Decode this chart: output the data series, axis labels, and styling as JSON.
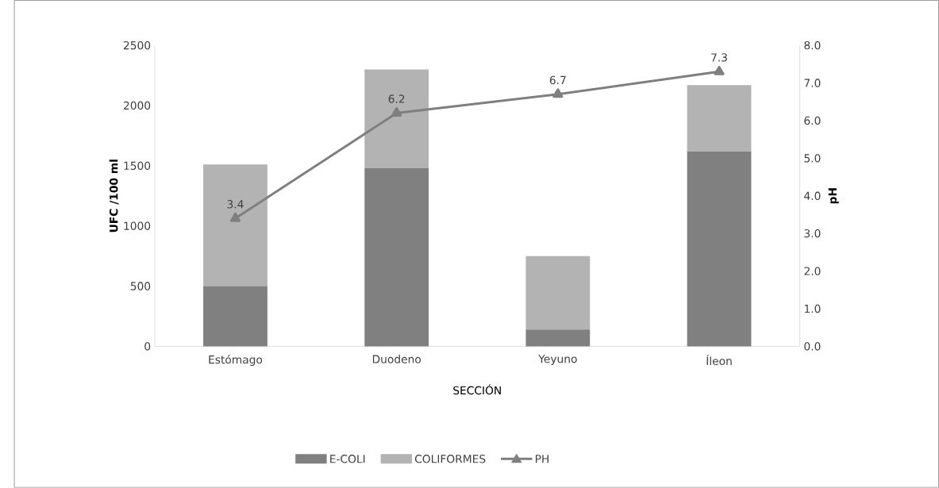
{
  "chart_data": {
    "type": "bar",
    "stacked": true,
    "xlabel": "SECCIÓN",
    "ylabel": "UFC /100 ml",
    "y2label": "pH",
    "categories": [
      "Estómago",
      "Duodeno",
      "Yeyuno",
      "Íleon"
    ],
    "ylim": [
      0,
      2500
    ],
    "yticks": [
      0,
      500,
      1000,
      1500,
      2000,
      2500
    ],
    "y2lim": [
      0,
      8
    ],
    "y2ticks": [
      {
        "value": 0,
        "label": "0.0"
      },
      {
        "value": 1,
        "label": "1.0"
      },
      {
        "value": 2,
        "label": "2.0"
      },
      {
        "value": 3,
        "label": "3.0"
      },
      {
        "value": 4,
        "label": "4.0"
      },
      {
        "value": 5,
        "label": "5.0"
      },
      {
        "value": 6,
        "label": "6.0"
      },
      {
        "value": 7,
        "label": "7.0"
      },
      {
        "value": 8,
        "label": "8.0"
      }
    ],
    "legend": "bottom",
    "series": [
      {
        "name": "E-COLI",
        "color": "#808080",
        "values": [
          500,
          1480,
          140,
          1620
        ]
      },
      {
        "name": "COLIFORMES",
        "color": "#b3b3b3",
        "values": [
          1010,
          820,
          610,
          550
        ]
      },
      {
        "name": "PH",
        "type": "line",
        "axis": "y2",
        "color": "#7f7f7f",
        "marker": "triangle",
        "values": [
          3.4,
          6.2,
          6.7,
          7.3
        ],
        "value_labels": [
          "3.4",
          "6.2",
          "6.7",
          "7.3"
        ]
      }
    ]
  }
}
